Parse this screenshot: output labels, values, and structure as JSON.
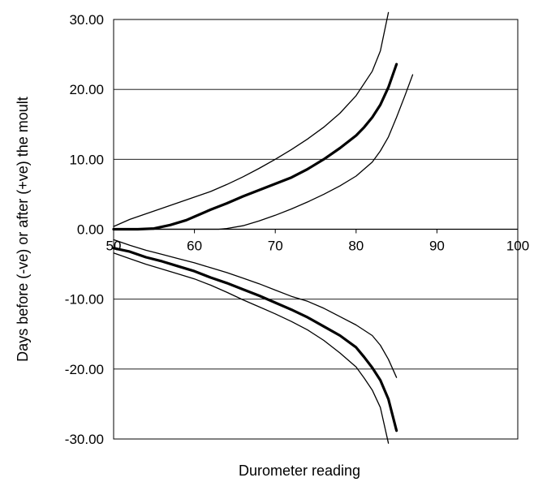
{
  "chart_data": {
    "type": "line",
    "title": "",
    "xlabel": "Durometer reading",
    "ylabel": "Days before (-ve) or after (+ve) the moult",
    "xlim": [
      50,
      100
    ],
    "ylim": [
      -30,
      30
    ],
    "x_ticks": [
      "50",
      "60",
      "70",
      "80",
      "90",
      "100"
    ],
    "y_ticks": [
      "30.00",
      "20.00",
      "10.00",
      "0.00",
      "-10.00",
      "-20.00",
      "-30.00"
    ],
    "grid": "horizontal",
    "legend": "none",
    "colors": {
      "line": "#000000",
      "grid": "#000000",
      "background": "#ffffff"
    },
    "series": [
      {
        "style": "thick",
        "x": [
          50,
          53,
          55,
          57,
          59,
          60,
          62,
          64,
          66,
          68,
          70,
          72,
          74,
          76,
          78,
          80,
          81,
          82,
          83,
          84,
          85
        ],
        "y": [
          0.0,
          0.0,
          0.1,
          0.6,
          1.3,
          1.8,
          2.8,
          3.7,
          4.7,
          5.6,
          6.5,
          7.4,
          8.6,
          10.0,
          11.6,
          13.4,
          14.6,
          16.0,
          17.8,
          20.3,
          23.6
        ]
      },
      {
        "style": "thin",
        "x": [
          50,
          52,
          54,
          56,
          58,
          60,
          62,
          64,
          66,
          68,
          70,
          72,
          74,
          76,
          78,
          80,
          82,
          83,
          84
        ],
        "y": [
          0.4,
          1.4,
          2.2,
          3.0,
          3.8,
          4.6,
          5.4,
          6.4,
          7.5,
          8.7,
          10.0,
          11.4,
          12.9,
          14.6,
          16.6,
          19.1,
          22.6,
          25.5,
          31.0
        ]
      },
      {
        "style": "thin",
        "x": [
          50,
          62,
          63,
          64,
          66,
          68,
          70,
          72,
          74,
          76,
          78,
          80,
          82,
          83,
          84,
          85,
          86,
          87
        ],
        "y": [
          0.0,
          0.0,
          0.0,
          0.1,
          0.5,
          1.2,
          2.0,
          2.9,
          3.9,
          5.0,
          6.2,
          7.6,
          9.6,
          11.2,
          13.2,
          16.0,
          19.0,
          22.1
        ]
      },
      {
        "style": "thick",
        "x": [
          50,
          52,
          54,
          56,
          58,
          60,
          62,
          64,
          66,
          68,
          70,
          72,
          74,
          76,
          78,
          80,
          81,
          82,
          83,
          84,
          85
        ],
        "y": [
          -2.7,
          -3.2,
          -4.0,
          -4.6,
          -5.3,
          -6.0,
          -6.9,
          -7.7,
          -8.6,
          -9.5,
          -10.5,
          -11.5,
          -12.6,
          -13.9,
          -15.2,
          -16.9,
          -18.3,
          -19.8,
          -21.6,
          -24.3,
          -28.8
        ]
      },
      {
        "style": "thin",
        "x": [
          50,
          52,
          54,
          56,
          58,
          60,
          62,
          64,
          66,
          68,
          70,
          72,
          74,
          76,
          78,
          80,
          82,
          83,
          84,
          85
        ],
        "y": [
          -1.5,
          -2.3,
          -3.0,
          -3.6,
          -4.2,
          -4.8,
          -5.5,
          -6.2,
          -7.0,
          -7.8,
          -8.7,
          -9.6,
          -10.3,
          -11.3,
          -12.5,
          -13.7,
          -15.2,
          -16.6,
          -18.6,
          -21.2
        ]
      },
      {
        "style": "thin",
        "x": [
          50,
          52,
          54,
          56,
          58,
          60,
          62,
          64,
          66,
          68,
          70,
          72,
          74,
          76,
          78,
          80,
          81,
          82,
          83,
          84
        ],
        "y": [
          -3.4,
          -4.2,
          -5.0,
          -5.7,
          -6.4,
          -7.1,
          -8.0,
          -9.0,
          -10.1,
          -11.1,
          -12.1,
          -13.2,
          -14.4,
          -15.9,
          -17.7,
          -19.7,
          -21.3,
          -23.0,
          -25.5,
          -30.6
        ]
      }
    ]
  }
}
